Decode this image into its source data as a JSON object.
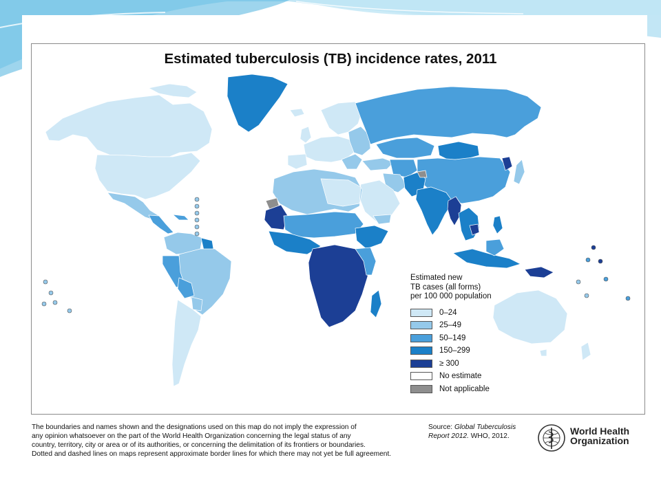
{
  "map": {
    "title": "Estimated tuberculosis (TB) incidence rates, 2011",
    "legend": {
      "title_lines": [
        "Estimated new",
        "TB cases (all forms)",
        "per 100 000 population"
      ],
      "items": [
        {
          "label": "0–24",
          "color": "#cfe8f6"
        },
        {
          "label": "25–49",
          "color": "#95c9ea"
        },
        {
          "label": "50–149",
          "color": "#4a9fdb"
        },
        {
          "label": "150–299",
          "color": "#1b80c8"
        },
        {
          "label": "≥ 300",
          "color": "#1c3f95"
        },
        {
          "label": "No estimate",
          "color": "#ffffff"
        },
        {
          "label": "Not applicable",
          "color": "#8e8e8e"
        }
      ]
    },
    "disclaimer_lines": [
      "The boundaries and names shown and the designations used on this map do not imply the expression of",
      "any opinion whatsoever on the part of the World Health Organization concerning the legal status of any",
      "country, territory, city or area or of its authorities, or concerning the delimitation of its frontiers or boundaries.",
      "Dotted and dashed lines on maps represent approximate border lines for which there may not yet be full agreement."
    ],
    "source": {
      "prefix": "Source:",
      "title_part1": "Global Tuberculosis",
      "title_part2": "Report 2012.",
      "suffix": "WHO, 2012."
    },
    "who_logo": {
      "icon": "who-emblem-icon",
      "line1": "World Health",
      "line2": "Organization"
    }
  }
}
